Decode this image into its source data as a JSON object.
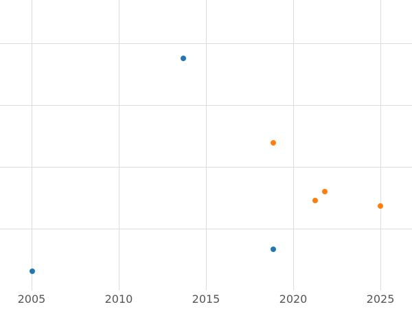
{
  "chart_data": {
    "type": "scatter",
    "title": "",
    "xlabel": "",
    "ylabel": "",
    "grid": true,
    "legend": "none",
    "xlim": [
      2003.19,
      2026.81
    ],
    "ylim": [
      0,
      4.7
    ],
    "x_ticks": [
      2005,
      2010,
      2015,
      2020,
      2025
    ],
    "y_gridlines": [
      1,
      2,
      3,
      4
    ],
    "series": [
      {
        "name": "blue-series",
        "color": "#1f77b4",
        "points": [
          {
            "x": 2013.7,
            "y": 3.76
          },
          {
            "x": 2018.85,
            "y": 0.67
          },
          {
            "x": 2005.05,
            "y": 0.31
          }
        ]
      },
      {
        "name": "orange-series",
        "color": "#ff7f0e",
        "points": [
          {
            "x": 2018.85,
            "y": 2.39
          },
          {
            "x": 2021.25,
            "y": 1.46
          },
          {
            "x": 2021.8,
            "y": 1.6
          },
          {
            "x": 2025.0,
            "y": 1.37
          }
        ]
      }
    ]
  },
  "style": {
    "background": "#ffffff",
    "gridline_color": "#dcdcdc",
    "tick_color": "#555555"
  }
}
